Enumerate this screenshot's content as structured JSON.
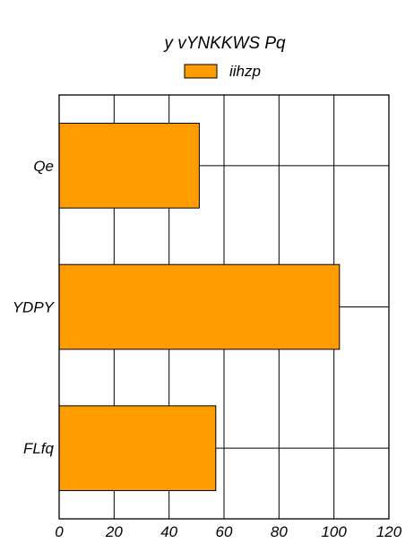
{
  "chart_data": {
    "type": "bar",
    "orientation": "horizontal",
    "title": "y vYNKKWS Pq",
    "categories": [
      "Qe",
      "YDPY",
      "FLfq"
    ],
    "series": [
      {
        "name": "iihzp",
        "values": [
          51,
          102,
          57
        ],
        "color": "#ff9c00"
      }
    ],
    "xlim": [
      0,
      120
    ],
    "xticks": [
      "0",
      "20",
      "40",
      "60",
      "80",
      "100",
      "120"
    ],
    "grid": true,
    "legend_position": "top-center"
  }
}
